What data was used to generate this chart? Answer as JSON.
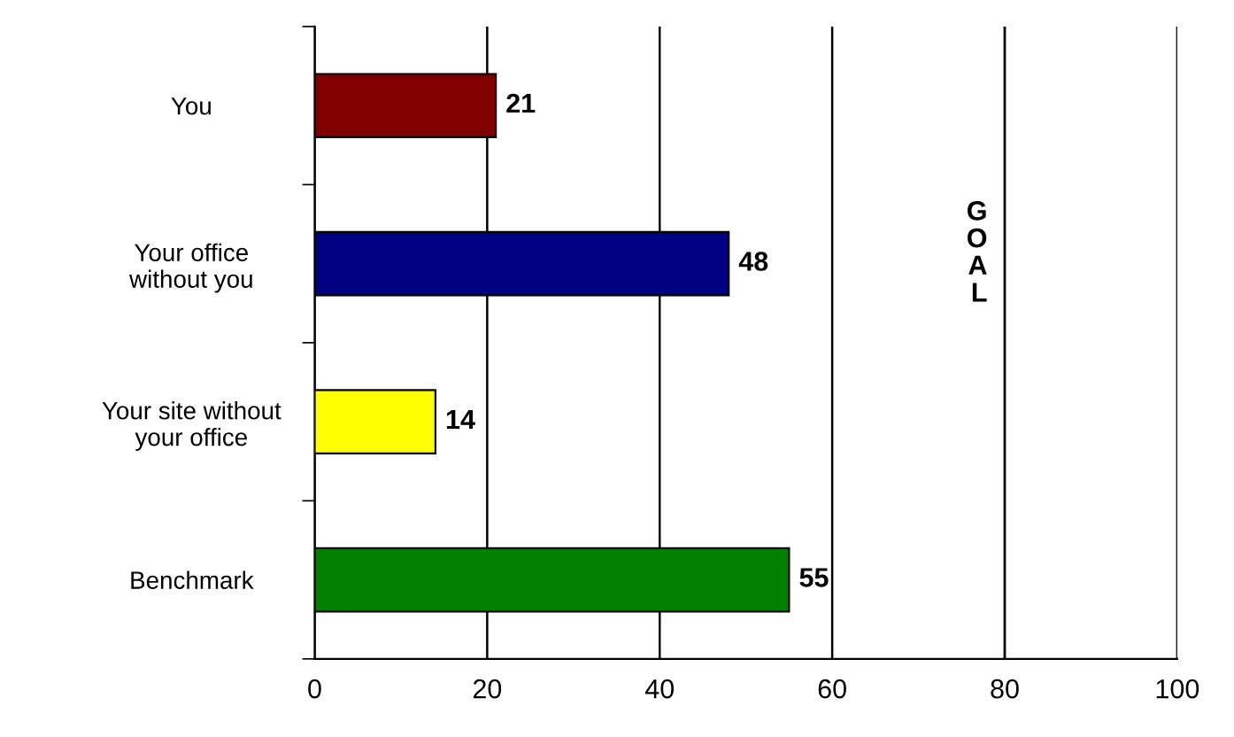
{
  "chart_data": {
    "type": "bar",
    "orientation": "horizontal",
    "categories": [
      "You",
      "Your office\nwithout you",
      "Your site without\nyour office",
      "Benchmark"
    ],
    "values": [
      21,
      48,
      14,
      55
    ],
    "colors": [
      "#800000",
      "#000080",
      "#ffff00",
      "#008000"
    ],
    "xlim": [
      0,
      100
    ],
    "xticks": [
      0,
      20,
      40,
      60,
      80,
      100
    ],
    "grid": "x",
    "data_labels": true,
    "ref_lines": [
      {
        "axis": "x",
        "value": 80,
        "label": "GOAL",
        "color": "#000000"
      }
    ]
  }
}
